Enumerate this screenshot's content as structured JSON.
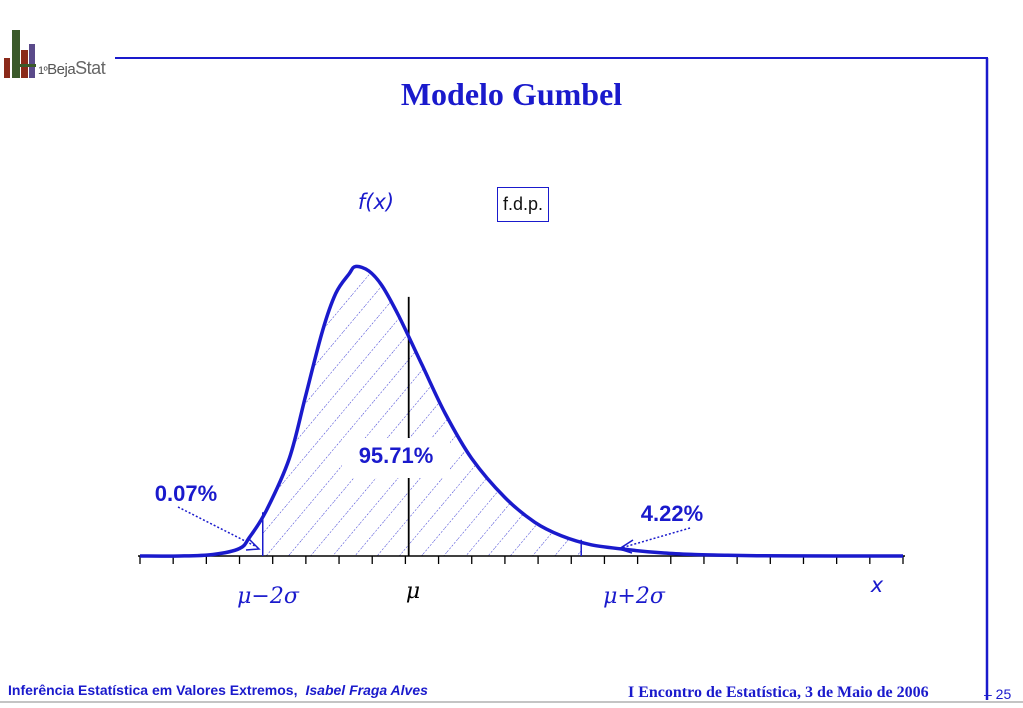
{
  "logo": {
    "number": "1º",
    "word1": "Beja",
    "word2": "Stat"
  },
  "title": "Modelo Gumbel",
  "legend_box": "f.d.p.",
  "chart_data": {
    "type": "area",
    "y_label": "f(x)",
    "x_label": "x",
    "curve": [
      [
        0,
        0
      ],
      [
        1.2,
        0
      ],
      [
        2.2,
        0.002
      ],
      [
        3.0,
        0.01
      ],
      [
        3.3,
        0.025
      ],
      [
        3.8,
        0.06
      ],
      [
        4.5,
        0.13
      ],
      [
        5.0,
        0.215
      ],
      [
        5.5,
        0.3
      ],
      [
        5.9,
        0.35
      ],
      [
        6.3,
        0.376
      ],
      [
        6.5,
        0.386
      ],
      [
        6.9,
        0.38
      ],
      [
        7.3,
        0.36
      ],
      [
        7.8,
        0.32
      ],
      [
        8.5,
        0.255
      ],
      [
        9.2,
        0.19
      ],
      [
        10.0,
        0.13
      ],
      [
        11.0,
        0.078
      ],
      [
        11.9,
        0.045
      ],
      [
        12.7,
        0.027
      ],
      [
        13.6,
        0.015
      ],
      [
        14.8,
        0.008
      ],
      [
        15.8,
        0.004
      ],
      [
        16.7,
        0.002
      ],
      [
        17.7,
        0.001
      ],
      [
        18.6,
        0.0004
      ],
      [
        19.6,
        0.0001
      ],
      [
        21,
        0
      ],
      [
        23,
        0
      ]
    ],
    "mu": 8.1,
    "lower": 3.7,
    "upper": 13.3,
    "x_range": [
      0,
      23
    ],
    "y_range": [
      0,
      0.4
    ],
    "tick_count": 24,
    "tick_labels": {
      "lower": "μ−2σ",
      "mu": "μ",
      "upper": "μ+2σ"
    },
    "annotations": {
      "left_tail": "0.07%",
      "center": "95.71%",
      "right_tail": "4.22%"
    }
  },
  "footer": {
    "left_title": "Inferência Estatística em Valores Extremos,",
    "left_author": "Isabel Fraga Alves",
    "right": "I Encontro de Estatística, 3 de Maio de 2006",
    "page": "– 25"
  }
}
